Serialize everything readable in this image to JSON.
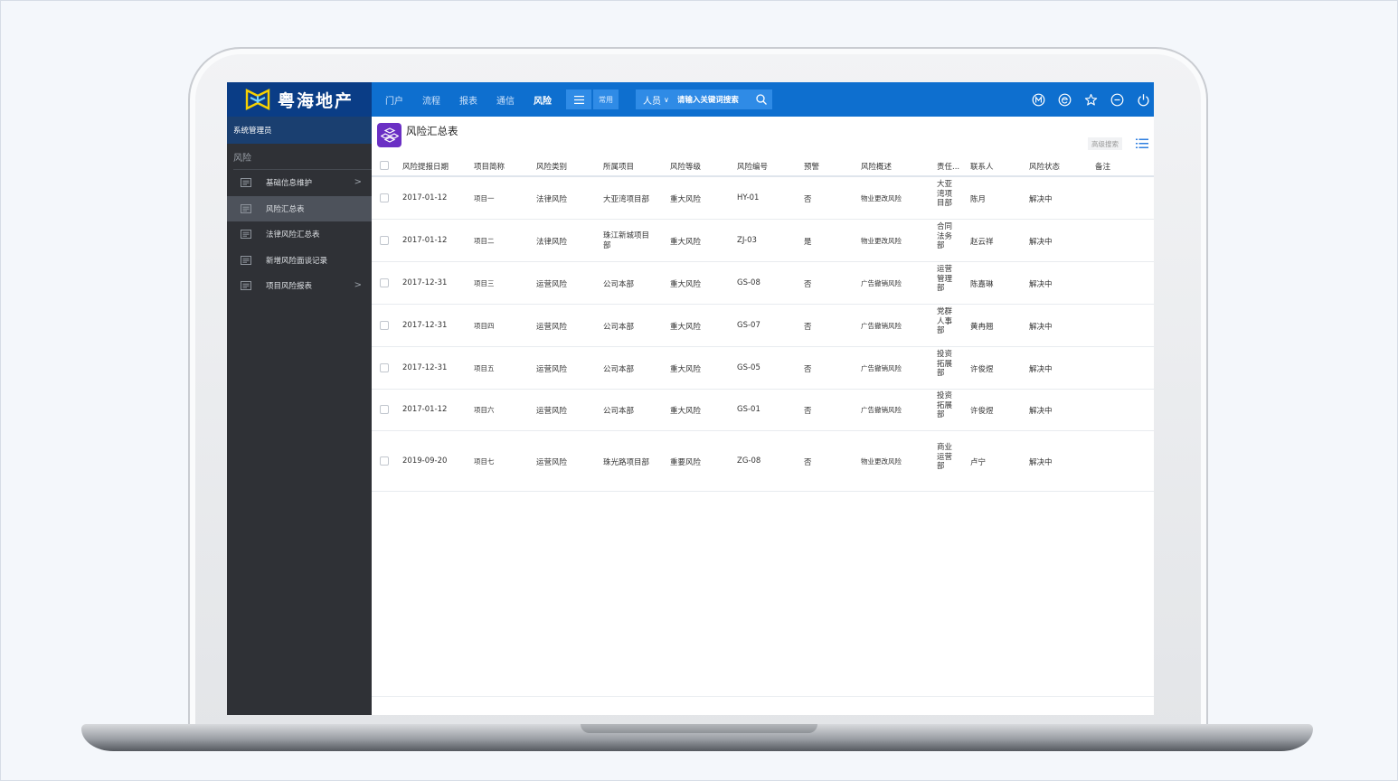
{
  "brand": {
    "name": "粤海地产",
    "logo_colors": [
      "#f7d100",
      "#6fd0ff"
    ]
  },
  "topnav": {
    "items": [
      {
        "label": "门户",
        "active": false
      },
      {
        "label": "流程",
        "active": false
      },
      {
        "label": "报表",
        "active": false
      },
      {
        "label": "通信",
        "active": false
      },
      {
        "label": "风险",
        "active": true
      }
    ],
    "menu_icon": "hamburger-icon",
    "common_label": "常用",
    "search": {
      "scope": "人员",
      "placeholder": "请输入关键词搜索",
      "icon": "search-icon"
    },
    "right_icons": [
      "m-circle-icon",
      "e-circle-icon",
      "star-icon",
      "minus-circle-icon",
      "power-icon"
    ]
  },
  "sidebar": {
    "user": "系统管理员",
    "section": "风险",
    "items": [
      {
        "label": "基础信息维护",
        "has_arrow": true,
        "active": false
      },
      {
        "label": "风险汇总表",
        "has_arrow": false,
        "active": true
      },
      {
        "label": "法律风险汇总表",
        "has_arrow": false,
        "active": false
      },
      {
        "label": "新增风险面谈记录",
        "has_arrow": false,
        "active": false
      },
      {
        "label": "项目风险报表",
        "has_arrow": true,
        "active": false
      }
    ]
  },
  "main": {
    "title": "风险汇总表",
    "advanced_search": "高级搜索",
    "columns": [
      "风险提报日期",
      "项目简称",
      "风险类别",
      "所属项目",
      "风险等级",
      "风险编号",
      "预警",
      "风险概述",
      "责任...",
      "联系人",
      "风险状态",
      "备注"
    ],
    "rows": [
      [
        "2017-01-12",
        "项目一",
        "法律风险",
        "大亚湾项目部",
        "重大风险",
        "HY-01",
        "否",
        "物业更改风险",
        "大亚湾项目部",
        "陈月",
        "解决中",
        ""
      ],
      [
        "2017-01-12",
        "项目二",
        "法律风险",
        "珠江新城项目部",
        "重大风险",
        "ZJ-03",
        "是",
        "物业更改风险",
        "合同法务部",
        "赵云祥",
        "解决中",
        ""
      ],
      [
        "2017-12-31",
        "项目三",
        "运营风险",
        "公司本部",
        "重大风险",
        "GS-08",
        "否",
        "广告撤销风险",
        "运营管理部",
        "陈嘉琳",
        "解决中",
        ""
      ],
      [
        "2017-12-31",
        "项目四",
        "运营风险",
        "公司本部",
        "重大风险",
        "GS-07",
        "否",
        "广告撤销风险",
        "党群人事部",
        "黄冉翘",
        "解决中",
        ""
      ],
      [
        "2017-12-31",
        "项目五",
        "运营风险",
        "公司本部",
        "重大风险",
        "GS-05",
        "否",
        "广告撤销风险",
        "投资拓展部",
        "许俊煜",
        "解决中",
        ""
      ],
      [
        "2017-01-12",
        "项目六",
        "运营风险",
        "公司本部",
        "重大风险",
        "GS-01",
        "否",
        "广告撤销风险",
        "投资拓展部",
        "许俊煜",
        "解决中",
        ""
      ],
      [
        "2019-09-20",
        "项目七",
        "运营风险",
        "珠光路项目部",
        "重要风险",
        "ZG-08",
        "否",
        "物业更改风险",
        "商业运营部",
        "卢宁",
        "解决中",
        ""
      ]
    ]
  },
  "colors": {
    "topbar": "#0e6fcf",
    "logo_bg": "#0a3d86",
    "sidebar": "#2f3136",
    "active_item": "#4d525b",
    "title_icon": "#6a2fc4"
  }
}
